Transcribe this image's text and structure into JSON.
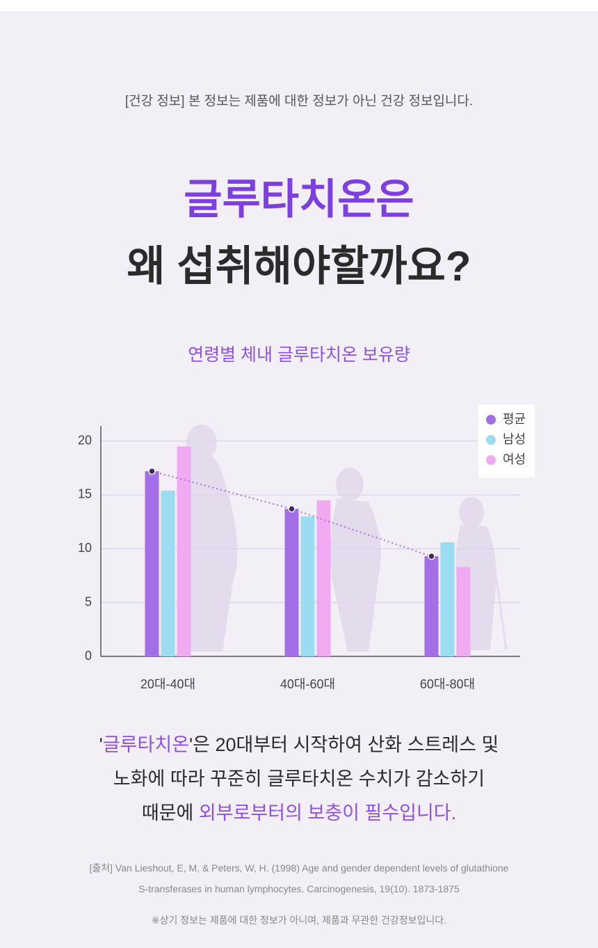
{
  "notice": "[건강 정보] 본 정보는 제품에 대한 정보가 아닌 건강 정보입니다.",
  "headline": {
    "line1": "글루타치온은",
    "line2": "왜 섭취해야할까요?"
  },
  "chart_data": {
    "type": "bar",
    "title": "연령별 체내 글루타치온 보유량",
    "categories": [
      "20대-40대",
      "40대-60대",
      "60대-80대"
    ],
    "series": [
      {
        "name": "평균",
        "color": "#a36fe6",
        "values": [
          17.2,
          13.7,
          9.3
        ]
      },
      {
        "name": "남성",
        "color": "#9bdcf1",
        "values": [
          15.4,
          13.0,
          10.6
        ]
      },
      {
        "name": "여성",
        "color": "#efaaf2",
        "values": [
          19.5,
          14.5,
          8.3
        ]
      }
    ],
    "trend_series": 0,
    "trend_color": "#a36fe6",
    "ylim": [
      0,
      21.4
    ],
    "yticks": [
      0,
      5,
      10,
      15,
      20
    ],
    "grid": true,
    "legend": "upper right"
  },
  "body": [
    [
      {
        "text": "'",
        "accent": false
      },
      {
        "text": "글루타치온",
        "accent": true
      },
      {
        "text": "'은 20대부터 시작하여 산화 스트레스 및",
        "accent": false
      }
    ],
    [
      {
        "text": "노화에 따라 꾸준히 글루타치온 수치가 감소하기",
        "accent": false
      }
    ],
    [
      {
        "text": "때문에 ",
        "accent": false
      },
      {
        "text": "외부로부터의 보충이 필수입니다.",
        "accent": true
      }
    ]
  ],
  "source": {
    "line1": "[출처] Van Lieshout, E, M, & Peters, W, H. (1998) Age and gender dependent levels of glutathione",
    "line2": "S-transferases in human lymphocytes. Carcinogenesis, 19(10). 1873-1875"
  },
  "footnote": "※상기 정보는 제품에 대한 정보가 아니며, 제품과 무관한 건강정보입니다."
}
